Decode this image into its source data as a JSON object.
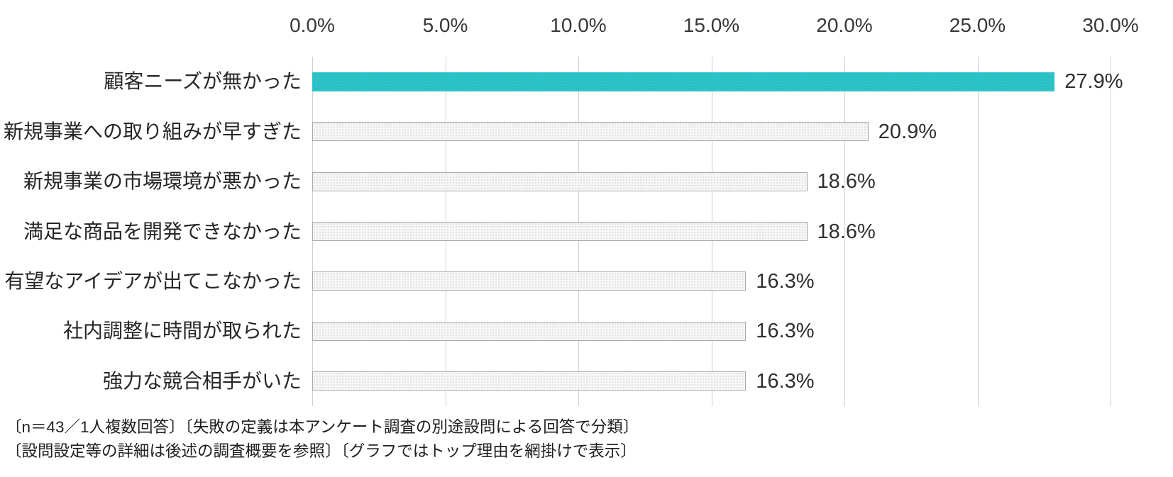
{
  "chart_data": {
    "type": "bar",
    "orientation": "horizontal",
    "title": "",
    "xlabel": "",
    "ylabel": "",
    "categories": [
      "顧客ニーズが無かった",
      "新規事業への取り組みが早すぎた",
      "新規事業の市場環境が悪かった",
      "満足な商品を開発できなかった",
      "有望なアイデアが出てこなかった",
      "社内調整に時間が取られた",
      "強力な競合相手がいた"
    ],
    "values": [
      27.9,
      20.9,
      18.6,
      18.6,
      16.3,
      16.3,
      16.3
    ],
    "value_labels": [
      "27.9%",
      "20.9%",
      "18.6%",
      "18.6%",
      "16.3%",
      "16.3%",
      "16.3%"
    ],
    "x_ticks": [
      "0.0%",
      "5.0%",
      "10.0%",
      "15.0%",
      "20.0%",
      "25.0%",
      "30.0%"
    ],
    "x_tick_values": [
      0,
      5,
      10,
      15,
      20,
      25,
      30
    ],
    "xlim": [
      0,
      30
    ],
    "axis_position": "top",
    "grid": "vertical",
    "legend": "none",
    "highlight_index": 0,
    "highlight_color": "#2bc4c9",
    "bar_color": "#f6f6f6",
    "bar_border_color": "#a9a9a9",
    "gridline_color": "#cfcfcf"
  },
  "footnotes": [
    "〔n＝43／1人複数回答〕〔失敗の定義は本アンケート調査の別途設問による回答で分類〕",
    "〔設問設定等の詳細は後述の調査概要を参照〕〔グラフではトップ理由を網掛けで表示〕"
  ]
}
